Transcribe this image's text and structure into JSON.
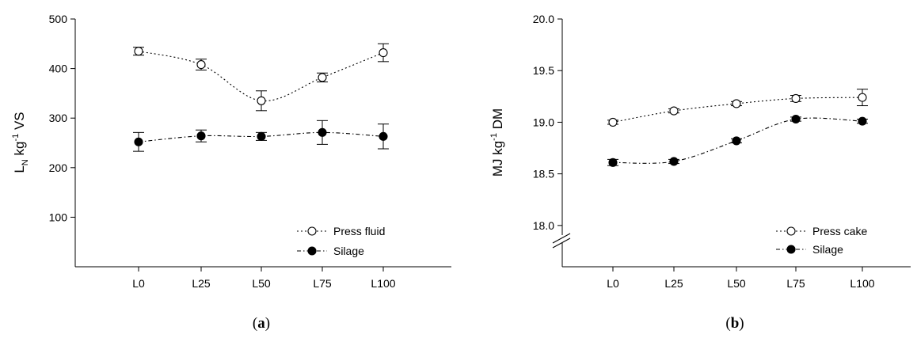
{
  "chart_data": [
    {
      "type": "line",
      "panel_label": {
        "open": "(",
        "letter": "a",
        "close": ")"
      },
      "categories": [
        "L0",
        "L25",
        "L50",
        "L75",
        "L100"
      ],
      "ylabel": {
        "base": "L",
        "sub": "N",
        "unit": " kg",
        "sup": "-1",
        "rest": " VS"
      },
      "ylim": [
        0,
        500
      ],
      "yticks": [
        "100",
        "200",
        "300",
        "400",
        "500"
      ],
      "grid": false,
      "legend_position": "bottom-right",
      "series": [
        {
          "name": "Press fluid",
          "marker": "open-circle",
          "line": "dotted",
          "values": [
            435,
            408,
            335,
            382,
            432
          ],
          "errors": [
            8,
            11,
            20,
            9,
            18
          ]
        },
        {
          "name": "Silage",
          "marker": "filled-circle",
          "line": "dash-dot",
          "values": [
            252,
            264,
            263,
            271,
            263
          ],
          "errors": [
            19,
            12,
            8,
            24,
            25
          ]
        }
      ]
    },
    {
      "type": "line",
      "panel_label": {
        "open": "(",
        "letter": "b",
        "close": ")"
      },
      "categories": [
        "L0",
        "L25",
        "L50",
        "L75",
        "L100"
      ],
      "ylabel": {
        "base": "MJ kg",
        "sup": "-1",
        "rest": " DM"
      },
      "ylim": [
        17.6,
        20.0
      ],
      "axis_break": true,
      "yticks": [
        "18.0",
        "18.5",
        "19.0",
        "19.5",
        "20.0"
      ],
      "grid": false,
      "legend_position": "bottom-right",
      "series": [
        {
          "name": "Press cake",
          "marker": "open-circle",
          "line": "dotted",
          "values": [
            19.0,
            19.11,
            19.18,
            19.23,
            19.24
          ],
          "errors": [
            0.02,
            0.02,
            0.02,
            0.03,
            0.08
          ]
        },
        {
          "name": "Silage",
          "marker": "filled-circle",
          "line": "dash-dot",
          "values": [
            18.61,
            18.62,
            18.82,
            19.03,
            19.01
          ],
          "errors": [
            0.03,
            0.02,
            0.02,
            0.02,
            0.02
          ]
        }
      ]
    }
  ]
}
